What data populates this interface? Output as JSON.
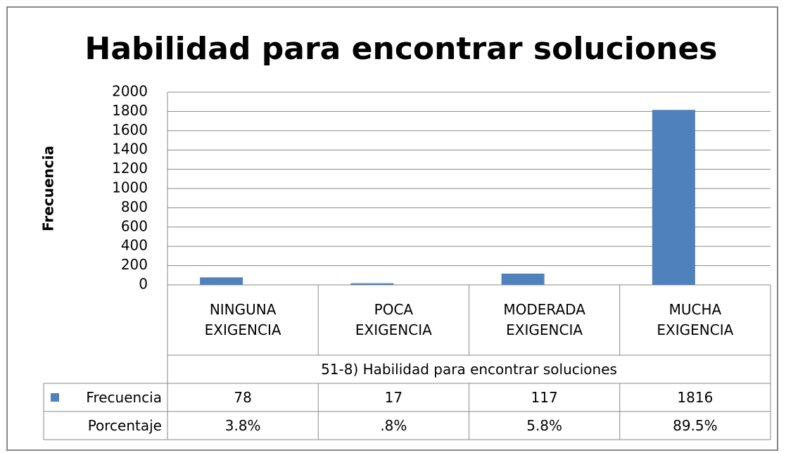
{
  "chart_data": {
    "type": "bar",
    "title": "Habilidad para encontrar soluciones",
    "y_label": "Frecuencia",
    "x_label": "51-8) Habilidad para encontrar soluciones",
    "categories": [
      "NINGUNA EXIGENCIA",
      "POCA EXIGENCIA",
      "MODERADA EXIGENCIA",
      "MUCHA EXIGENCIA"
    ],
    "series": [
      {
        "name": "Frecuencia",
        "color": "#4f81bd",
        "values": [
          78,
          17,
          117,
          1816
        ]
      },
      {
        "name": "Porcentaje",
        "color": "none",
        "values": [
          3.8,
          0.8,
          5.8,
          89.5
        ],
        "value_labels": [
          "3.8%",
          ".8%",
          "5.8%",
          "89.5%"
        ]
      }
    ],
    "ylim": [
      0,
      2000
    ],
    "yticks": [
      0,
      200,
      400,
      600,
      800,
      1000,
      1200,
      1400,
      1600,
      1800,
      2000
    ],
    "grid": true,
    "data_table": true
  }
}
